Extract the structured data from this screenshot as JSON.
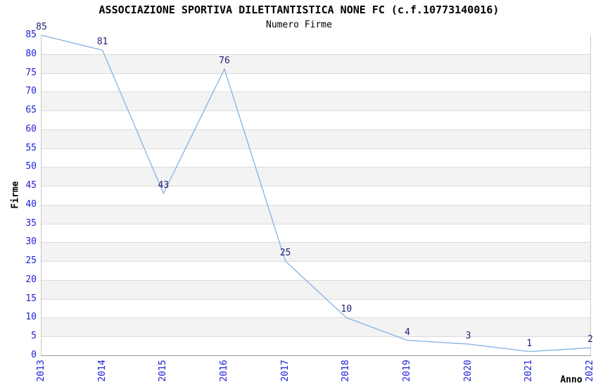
{
  "chart": {
    "title": "ASSOCIAZIONE SPORTIVA DILETTANTISTICA NONE FC (c.f.10773140016)",
    "subtitle": "Numero Firme"
  },
  "chart_data": {
    "type": "line",
    "title": "ASSOCIAZIONE SPORTIVA DILETTANTISTICA NONE FC (c.f.10773140016)",
    "subtitle": "Numero Firme",
    "xlabel": "Anno",
    "ylabel": "Firme",
    "categories": [
      "2013",
      "2014",
      "2015",
      "2016",
      "2017",
      "2018",
      "2019",
      "2020",
      "2021",
      "2022"
    ],
    "series": [
      {
        "name": "Numero Firme",
        "values": [
          85,
          81,
          43,
          76,
          25,
          10,
          4,
          3,
          1,
          2
        ]
      }
    ],
    "values": [
      85,
      81,
      43,
      76,
      25,
      10,
      4,
      3,
      1,
      2
    ],
    "yticks": [
      0,
      5,
      10,
      15,
      20,
      25,
      30,
      35,
      40,
      45,
      50,
      55,
      60,
      65,
      70,
      75,
      80,
      85
    ],
    "ylim": [
      0,
      85
    ],
    "grid": true,
    "alternating_bands": true,
    "legend": "none",
    "x_tick_rotation": -90,
    "colors": {
      "line": "#83b2e4",
      "tick_label": "#1e1ed6",
      "data_label": "#1f1f78",
      "band": "#f3f3f3",
      "grid": "#dcdcdc",
      "axis_bottom": "#999999",
      "axis_side": "#c8c8c8",
      "text": "#000000",
      "background": "#ffffff"
    }
  }
}
